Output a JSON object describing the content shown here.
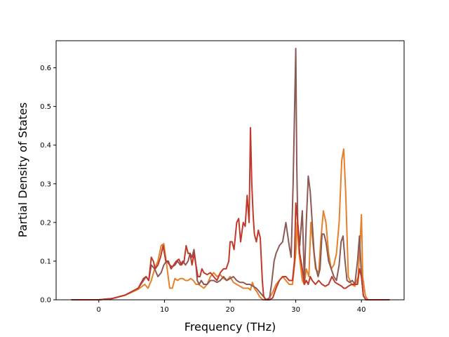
{
  "chart_data": {
    "type": "line",
    "title": "",
    "xlabel": "Frequency (THz)",
    "ylabel": "Partial Density of States",
    "xlim": [
      -6.5,
      46.5
    ],
    "ylim": [
      0.0,
      0.67
    ],
    "xticks": [
      0,
      10,
      20,
      30,
      40
    ],
    "yticks": [
      0.0,
      0.1,
      0.2,
      0.3,
      0.4,
      0.5,
      0.6
    ],
    "ytick_labels": [
      "0.0",
      "0.1",
      "0.2",
      "0.3",
      "0.4",
      "0.5",
      "0.6"
    ],
    "grid": false,
    "legend": "none",
    "series": [
      {
        "color": "#e6812a",
        "x": [
          -4.2,
          0,
          2,
          4,
          6,
          7,
          7.5,
          8,
          8.5,
          9,
          9.5,
          9.9,
          10.3,
          10.8,
          11.2,
          11.6,
          12,
          12.4,
          12.8,
          13.2,
          13.6,
          14,
          14.4,
          14.8,
          15.2,
          15.6,
          16,
          16.5,
          17,
          17.5,
          18,
          18.5,
          19,
          19.5,
          20,
          20.5,
          21,
          21.5,
          22,
          22.4,
          22.8,
          23.1,
          23.4,
          23.7,
          24.1,
          24.5,
          25,
          25.5,
          26,
          26.5,
          27,
          27.5,
          28,
          28.5,
          29,
          29.5,
          30,
          30.2,
          30.5,
          31,
          31.3,
          31.6,
          32,
          32.3,
          32.6,
          33,
          33.5,
          33.8,
          34.2,
          34.6,
          35,
          35.4,
          35.8,
          36.2,
          36.6,
          37,
          37.3,
          37.6,
          38,
          38.5,
          39,
          39.5,
          39.8,
          40,
          40.2,
          40.6,
          41,
          42,
          44.3
        ],
        "y": [
          0,
          0,
          0.003,
          0.012,
          0.027,
          0.04,
          0.03,
          0.05,
          0.08,
          0.1,
          0.14,
          0.145,
          0.095,
          0.03,
          0.03,
          0.055,
          0.05,
          0.055,
          0.055,
          0.05,
          0.05,
          0.055,
          0.05,
          0.04,
          0.04,
          0.035,
          0.03,
          0.04,
          0.06,
          0.07,
          0.06,
          0.065,
          0.055,
          0.05,
          0.06,
          0.045,
          0.04,
          0.035,
          0.03,
          0.03,
          0.03,
          0.025,
          0.045,
          0.03,
          0.02,
          0.008,
          0.0,
          0.0,
          0.005,
          0.02,
          0.04,
          0.05,
          0.06,
          0.05,
          0.04,
          0.04,
          0.12,
          0.2,
          0.12,
          0.05,
          0.04,
          0.08,
          0.06,
          0.2,
          0.15,
          0.08,
          0.07,
          0.15,
          0.23,
          0.2,
          0.12,
          0.08,
          0.09,
          0.12,
          0.2,
          0.36,
          0.39,
          0.28,
          0.06,
          0.04,
          0.035,
          0.06,
          0.15,
          0.22,
          0.06,
          0.01,
          0,
          0,
          0
        ]
      },
      {
        "color": "#8b5a54",
        "x": [
          -4.2,
          0,
          2,
          4,
          6,
          6.8,
          7.2,
          7.6,
          8,
          8.5,
          9,
          9.5,
          9.9,
          10.3,
          10.8,
          11.2,
          11.6,
          12,
          12.4,
          12.8,
          13.2,
          13.6,
          13.9,
          14.2,
          14.5,
          14.8,
          15,
          15.3,
          15.6,
          16,
          16.5,
          17,
          17.5,
          18,
          18.5,
          19,
          19.5,
          20,
          20.5,
          21,
          21.5,
          22,
          22.5,
          23,
          23.5,
          24,
          24.5,
          25,
          25.5,
          26,
          26.3,
          26.7,
          27,
          27.5,
          28,
          28.5,
          29,
          29.3,
          29.6,
          30,
          30.15,
          30.3,
          30.6,
          31,
          31.3,
          31.6,
          31.9,
          32.2,
          32.5,
          32.8,
          33.1,
          33.4,
          33.7,
          34,
          34.3,
          34.6,
          35,
          35.4,
          35.8,
          36.2,
          36.6,
          36.9,
          37.2,
          37.5,
          37.8,
          38.2,
          38.6,
          39,
          39.4,
          39.7,
          40,
          40.3,
          40.7,
          41,
          42,
          44.3
        ],
        "y": [
          0,
          0,
          0.003,
          0.012,
          0.03,
          0.05,
          0.06,
          0.05,
          0.09,
          0.08,
          0.06,
          0.07,
          0.09,
          0.1,
          0.09,
          0.085,
          0.09,
          0.1,
          0.09,
          0.1,
          0.09,
          0.1,
          0.12,
          0.11,
          0.13,
          0.09,
          0.05,
          0.04,
          0.05,
          0.04,
          0.04,
          0.05,
          0.05,
          0.045,
          0.05,
          0.06,
          0.05,
          0.055,
          0.06,
          0.05,
          0.045,
          0.045,
          0.04,
          0.04,
          0.035,
          0.03,
          0.02,
          0.01,
          0.0,
          0.005,
          0.04,
          0.1,
          0.12,
          0.14,
          0.15,
          0.2,
          0.14,
          0.11,
          0.3,
          0.65,
          0.35,
          0.2,
          0.14,
          0.23,
          0.05,
          0.2,
          0.32,
          0.28,
          0.2,
          0.12,
          0.08,
          0.06,
          0.08,
          0.17,
          0.17,
          0.15,
          0.1,
          0.08,
          0.06,
          0.05,
          0.09,
          0.15,
          0.165,
          0.1,
          0.05,
          0.045,
          0.05,
          0.04,
          0.1,
          0.165,
          0.06,
          0.01,
          0,
          0,
          0,
          0
        ]
      },
      {
        "color": "#c0392b",
        "x": [
          -4.2,
          0,
          2,
          4,
          6,
          6.8,
          7.2,
          7.6,
          8,
          8.3,
          8.6,
          9,
          9.4,
          9.8,
          10.2,
          10.6,
          11,
          11.4,
          11.8,
          12.2,
          12.6,
          13,
          13.3,
          13.6,
          13.9,
          14.2,
          14.5,
          14.8,
          15.1,
          15.4,
          15.7,
          16,
          16.5,
          17,
          17.5,
          18,
          18.5,
          19,
          19.4,
          19.8,
          20,
          20.3,
          20.6,
          21,
          21.3,
          21.6,
          22,
          22.3,
          22.6,
          22.9,
          23.1,
          23.3,
          23.5,
          23.7,
          24,
          24.3,
          24.6,
          24.9,
          25.1,
          25.4,
          25.7,
          26,
          26.5,
          27,
          27.5,
          28,
          28.5,
          29,
          29.5,
          29.8,
          30,
          30.3,
          30.6,
          31,
          31.3,
          31.6,
          31.9,
          32.2,
          32.5,
          33,
          33.5,
          34,
          34.5,
          35,
          35.5,
          36,
          36.5,
          37,
          37.3,
          37.6,
          38,
          38.5,
          39,
          39.4,
          39.7,
          40,
          40.3,
          40.7,
          41,
          42,
          44.3
        ],
        "y": [
          0,
          0,
          0.003,
          0.012,
          0.03,
          0.055,
          0.06,
          0.05,
          0.11,
          0.1,
          0.08,
          0.09,
          0.11,
          0.14,
          0.1,
          0.1,
          0.08,
          0.09,
          0.1,
          0.105,
          0.09,
          0.1,
          0.14,
          0.12,
          0.12,
          0.09,
          0.12,
          0.09,
          0.06,
          0.06,
          0.08,
          0.07,
          0.065,
          0.07,
          0.06,
          0.05,
          0.07,
          0.08,
          0.08,
          0.1,
          0.15,
          0.15,
          0.13,
          0.2,
          0.21,
          0.15,
          0.2,
          0.19,
          0.27,
          0.2,
          0.445,
          0.3,
          0.22,
          0.17,
          0.15,
          0.18,
          0.16,
          0.05,
          0.01,
          0.0,
          0.0,
          0.0,
          0.005,
          0.03,
          0.05,
          0.06,
          0.06,
          0.05,
          0.05,
          0.1,
          0.25,
          0.2,
          0.12,
          0.08,
          0.04,
          0.05,
          0.04,
          0.06,
          0.05,
          0.04,
          0.05,
          0.04,
          0.035,
          0.04,
          0.06,
          0.045,
          0.04,
          0.035,
          0.03,
          0.03,
          0.035,
          0.04,
          0.04,
          0.04,
          0.08,
          0.06,
          0.01,
          0,
          0,
          0,
          0
        ]
      }
    ]
  }
}
